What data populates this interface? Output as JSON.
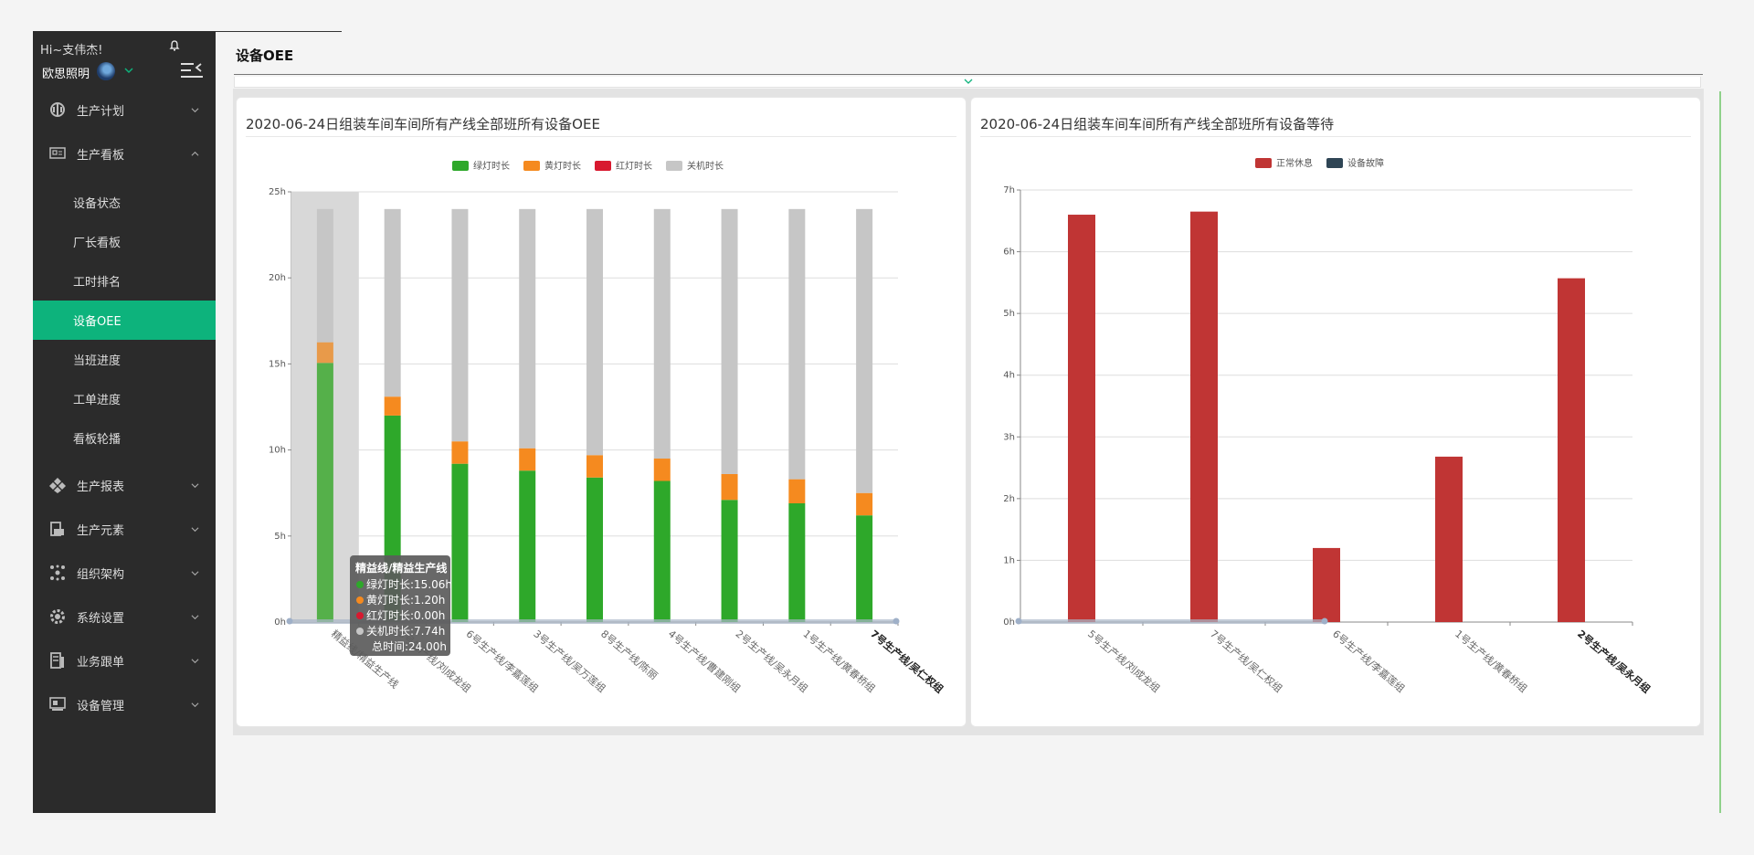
{
  "sidebar": {
    "greeting": "Hi~支伟杰!",
    "company": "欧思照明",
    "items": [
      {
        "label": "生产计划",
        "icon": "production-plan-icon"
      },
      {
        "label": "生产看板",
        "icon": "production-board-icon",
        "expanded": true,
        "children": [
          {
            "label": "设备状态"
          },
          {
            "label": "厂长看板"
          },
          {
            "label": "工时排名"
          },
          {
            "label": "设备OEE",
            "active": true
          },
          {
            "label": "当班进度"
          },
          {
            "label": "工单进度"
          },
          {
            "label": "看板轮播"
          }
        ]
      },
      {
        "label": "生产报表",
        "icon": "production-report-icon"
      },
      {
        "label": "生产元素",
        "icon": "production-element-icon"
      },
      {
        "label": "组织架构",
        "icon": "org-structure-icon"
      },
      {
        "label": "系统设置",
        "icon": "settings-icon"
      },
      {
        "label": "业务跟单",
        "icon": "business-order-icon"
      },
      {
        "label": "设备管理",
        "icon": "device-management-icon"
      }
    ]
  },
  "page": {
    "title": "设备OEE"
  },
  "colors": {
    "accent": "#0db37c",
    "green": "#2ea82a",
    "yellow": "#f58a1f",
    "red": "#d8192f",
    "gray": "#c6c6c6",
    "rest": "#c03534",
    "fault": "#2f4555"
  },
  "chart_data": [
    {
      "type": "bar",
      "stacked": true,
      "title": "2020-06-24日组装车间车间所有产线全部班所有设备OEE",
      "legend": [
        "绿灯时长",
        "黄灯时长",
        "红灯时长",
        "关机时长"
      ],
      "legend_position": "top-center",
      "categories": [
        "精益线/精益生产线",
        "5号生产线/刘成龙组",
        "6号生产线/李嘉莲组",
        "3号生产线/吴万莲组",
        "8号生产线/陈丽",
        "4号生产线/曹建刚组",
        "2号生产线/吴永月组",
        "1号生产线/黄春桥组",
        "7号生产线/吴仁权组"
      ],
      "series": [
        {
          "name": "绿灯时长",
          "values": [
            15.06,
            12.0,
            9.2,
            8.8,
            8.4,
            8.2,
            7.1,
            6.9,
            6.2
          ]
        },
        {
          "name": "黄灯时长",
          "values": [
            1.2,
            1.1,
            1.3,
            1.3,
            1.3,
            1.3,
            1.5,
            1.4,
            1.3
          ]
        },
        {
          "name": "红灯时长",
          "values": [
            0,
            0,
            0,
            0,
            0,
            0,
            0,
            0,
            0
          ]
        },
        {
          "name": "关机时长",
          "values": [
            7.74,
            10.9,
            13.5,
            13.9,
            14.3,
            14.5,
            15.4,
            15.7,
            16.5
          ]
        }
      ],
      "ylim": [
        0,
        25
      ],
      "yticks": [
        "0h",
        "5h",
        "10h",
        "15h",
        "20h",
        "25h"
      ],
      "grid": true,
      "tooltip": {
        "title": "精益线/精益生产线",
        "lines": [
          "绿灯时长:15.06h",
          "黄灯时长:1.20h",
          "红灯时长:0.00h",
          "关机时长:7.74h",
          "总时间:24.00h"
        ]
      }
    },
    {
      "type": "bar",
      "title": "2020-06-24日组装车间车间所有产线全部班所有设备等待",
      "legend": [
        "正常休息",
        "设备故障"
      ],
      "legend_position": "top-center",
      "categories": [
        "5号生产线/刘成龙组",
        "7号生产线/吴仁权组",
        "6号生产线/李嘉莲组",
        "1号生产线/黄春桥组",
        "2号生产线/吴永月组"
      ],
      "series": [
        {
          "name": "正常休息",
          "values": [
            6.6,
            6.65,
            1.2,
            2.68,
            5.57
          ]
        },
        {
          "name": "设备故障",
          "values": [
            0,
            0,
            0,
            0,
            0
          ]
        }
      ],
      "ylim": [
        0,
        7
      ],
      "yticks": [
        "0h",
        "1h",
        "2h",
        "3h",
        "4h",
        "5h",
        "6h",
        "7h"
      ],
      "grid": true
    }
  ]
}
